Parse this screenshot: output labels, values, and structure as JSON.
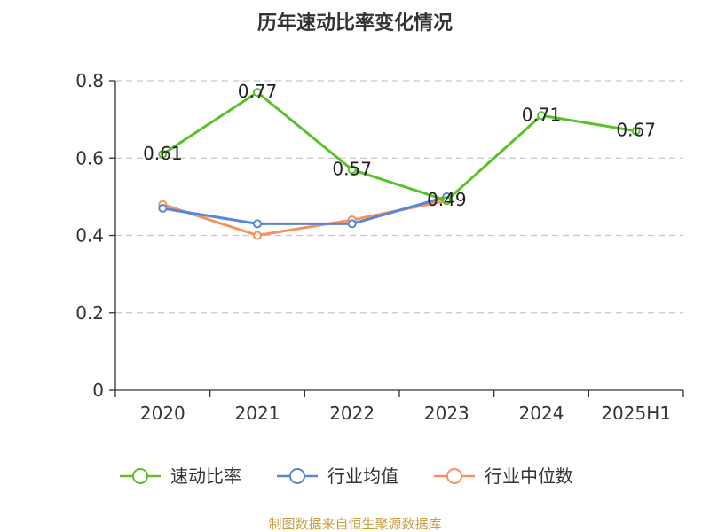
{
  "chart_data": {
    "type": "line",
    "title": "历年速动比率变化情况",
    "categories": [
      "2020",
      "2021",
      "2022",
      "2023",
      "2024",
      "2025H1"
    ],
    "yticks": [
      "0",
      "0.2",
      "0.4",
      "0.6",
      "0.8"
    ],
    "ylim": [
      0,
      0.8
    ],
    "grid": true,
    "legend_position": "bottom",
    "series": [
      {
        "name": "速动比率",
        "color": "#5ac12a",
        "values": [
          0.61,
          0.77,
          0.57,
          0.49,
          0.71,
          0.67
        ],
        "labels": [
          "0.61",
          "0.77",
          "0.57",
          "0.49",
          "0.71",
          "0.67"
        ]
      },
      {
        "name": "行业均值",
        "color": "#5b86d6",
        "values": [
          0.47,
          0.43,
          0.43,
          0.5,
          null,
          null
        ]
      },
      {
        "name": "行业中位数",
        "color": "#f5935a",
        "values": [
          0.48,
          0.4,
          0.44,
          0.49,
          null,
          null
        ]
      }
    ]
  },
  "source": "制图数据来自恒生聚源数据库"
}
